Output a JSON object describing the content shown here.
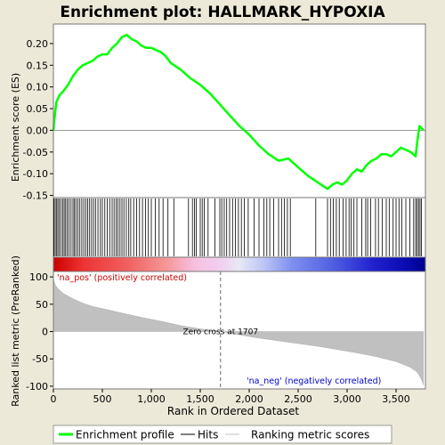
{
  "chart_data": {
    "type": "line",
    "title": "Enrichment plot: HALLMARK_HYPOXIA",
    "xlabel": "Rank in Ordered Dataset",
    "xlim": [
      0,
      3800
    ],
    "x_ticks": [
      0,
      500,
      1000,
      1500,
      2000,
      2500,
      3000,
      3500
    ],
    "x_tick_labels": [
      "0",
      "500",
      "1,000",
      "1,500",
      "2,000",
      "2,500",
      "3,000",
      "3,500"
    ],
    "top_panel": {
      "ylabel": "Enrichment score (ES)",
      "ylim": [
        -0.155,
        0.245
      ],
      "y_ticks": [
        -0.15,
        -0.1,
        -0.05,
        0.0,
        0.05,
        0.1,
        0.15,
        0.2
      ],
      "y_tick_labels": [
        "-0.15",
        "-0.10",
        "-0.05",
        "0.00",
        "0.05",
        "0.10",
        "0.15",
        "0.20"
      ],
      "series": [
        {
          "name": "Enrichment profile",
          "color": "#00ff00",
          "x": [
            0,
            10,
            30,
            60,
            100,
            150,
            200,
            250,
            300,
            350,
            400,
            450,
            500,
            550,
            600,
            650,
            700,
            750,
            800,
            850,
            900,
            950,
            1000,
            1050,
            1100,
            1150,
            1200,
            1300,
            1400,
            1500,
            1600,
            1700,
            1800,
            1900,
            2000,
            2100,
            2200,
            2300,
            2400,
            2500,
            2600,
            2700,
            2800,
            2850,
            2900,
            2950,
            3000,
            3050,
            3100,
            3150,
            3200,
            3250,
            3300,
            3350,
            3400,
            3450,
            3500,
            3550,
            3600,
            3650,
            3700,
            3720,
            3740,
            3760,
            3780
          ],
          "y": [
            0.0,
            0.025,
            0.065,
            0.08,
            0.09,
            0.105,
            0.125,
            0.14,
            0.15,
            0.155,
            0.16,
            0.17,
            0.175,
            0.175,
            0.19,
            0.2,
            0.215,
            0.22,
            0.21,
            0.205,
            0.195,
            0.19,
            0.19,
            0.185,
            0.18,
            0.17,
            0.155,
            0.14,
            0.12,
            0.105,
            0.085,
            0.06,
            0.035,
            0.01,
            -0.01,
            -0.035,
            -0.055,
            -0.07,
            -0.065,
            -0.085,
            -0.105,
            -0.12,
            -0.135,
            -0.125,
            -0.12,
            -0.125,
            -0.115,
            -0.1,
            -0.09,
            -0.095,
            -0.08,
            -0.07,
            -0.065,
            -0.055,
            -0.055,
            -0.06,
            -0.05,
            -0.04,
            -0.045,
            -0.05,
            -0.06,
            -0.02,
            0.01,
            0.005,
            0.0
          ]
        }
      ]
    },
    "hits_panel": {
      "hit_ranks": [
        5,
        18,
        30,
        45,
        60,
        78,
        95,
        110,
        125,
        140,
        160,
        180,
        200,
        215,
        230,
        250,
        270,
        290,
        310,
        330,
        350,
        370,
        390,
        410,
        430,
        455,
        480,
        500,
        525,
        550,
        575,
        600,
        620,
        640,
        660,
        680,
        700,
        720,
        745,
        770,
        790,
        820,
        850,
        880,
        910,
        940,
        970,
        1000,
        1040,
        1080,
        1120,
        1170,
        1230,
        1380,
        1420,
        1440,
        1460,
        1500,
        1520,
        1540,
        1580,
        1650,
        1700,
        1720,
        1745,
        1770,
        1800,
        1830,
        1860,
        1890,
        1920,
        1950,
        1990,
        2050,
        2100,
        2150,
        2180,
        2210,
        2250,
        2300,
        2330,
        2360,
        2390,
        2420,
        2680,
        2800,
        2830,
        2860,
        2890,
        2920,
        2960,
        2990,
        3020,
        3040,
        3070,
        3100,
        3150,
        3190,
        3210,
        3240,
        3290,
        3320,
        3360,
        3400,
        3430,
        3470,
        3500,
        3530,
        3560,
        3600,
        3640,
        3680,
        3700,
        3715,
        3730,
        3745,
        3760
      ]
    },
    "bottom_panel": {
      "ylabel": "Ranked list metric (PreRanked)",
      "ylim": [
        -105,
        110
      ],
      "y_ticks": [
        -100,
        -50,
        0,
        50,
        100
      ],
      "y_tick_labels": [
        "-100",
        "-50",
        "0",
        "50",
        "100"
      ],
      "metric": {
        "x": [
          0,
          20,
          50,
          100,
          200,
          300,
          400,
          500,
          700,
          900,
          1100,
          1300,
          1500,
          1707,
          1900,
          2100,
          2300,
          2500,
          2700,
          2900,
          3100,
          3300,
          3500,
          3600,
          3650,
          3700,
          3730,
          3760,
          3780
        ],
        "y": [
          95,
          85,
          78,
          70,
          60,
          52,
          46,
          42,
          34,
          26,
          19,
          11,
          5,
          0,
          -6,
          -12,
          -17,
          -22,
          -27,
          -33,
          -39,
          -46,
          -55,
          -62,
          -66,
          -72,
          -78,
          -88,
          -98
        ]
      },
      "zero_cross_rank": 1707,
      "zero_cross_label": "Zero cross at 1707",
      "pos_label": "'na_pos' (positively correlated)",
      "neg_label": "'na_neg' (negatively correlated)",
      "pos_color": "#cc0000",
      "neg_color": "#0000cc"
    },
    "legend": {
      "placement": "bottom",
      "items": [
        {
          "label": "Enrichment profile",
          "color": "#00ff00"
        },
        {
          "label": "Hits",
          "color": "#000000"
        },
        {
          "label": "Ranking metric scores",
          "color": "#c0c0c0"
        }
      ]
    }
  }
}
